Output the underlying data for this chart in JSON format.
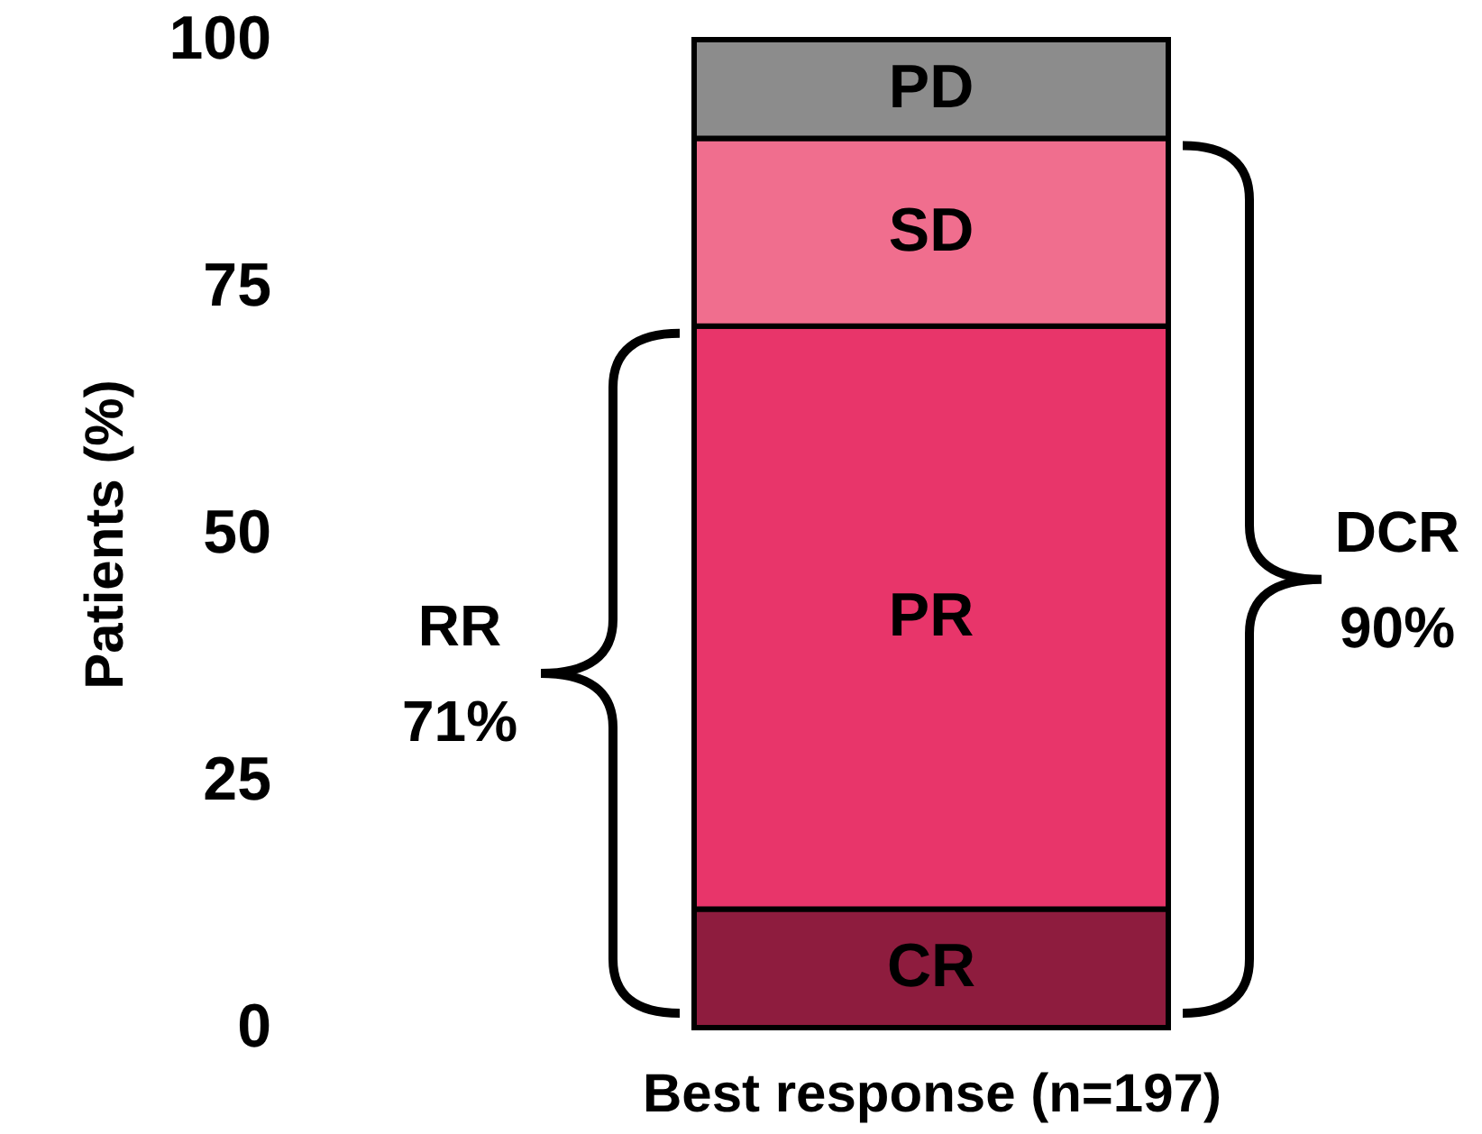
{
  "chart_data": {
    "type": "bar",
    "stacked": true,
    "ylabel": "Patients (%)",
    "xlabel": "Best response (n=197)",
    "categories": [
      null
    ],
    "series": [
      {
        "name": "CR",
        "color": "#8e1c3e",
        "values": [
          12
        ]
      },
      {
        "name": "PR",
        "color": "#e8356a",
        "values": [
          59
        ]
      },
      {
        "name": "SD",
        "color": "#f06e8e",
        "values": [
          19
        ]
      },
      {
        "name": "PD",
        "color": "#8c8c8c",
        "values": [
          10
        ]
      }
    ],
    "ylim": [
      0,
      100
    ],
    "yticks": [
      0,
      25,
      50,
      75,
      100
    ],
    "annotations": [
      "RR\n71%",
      "DCR\n90%"
    ]
  }
}
